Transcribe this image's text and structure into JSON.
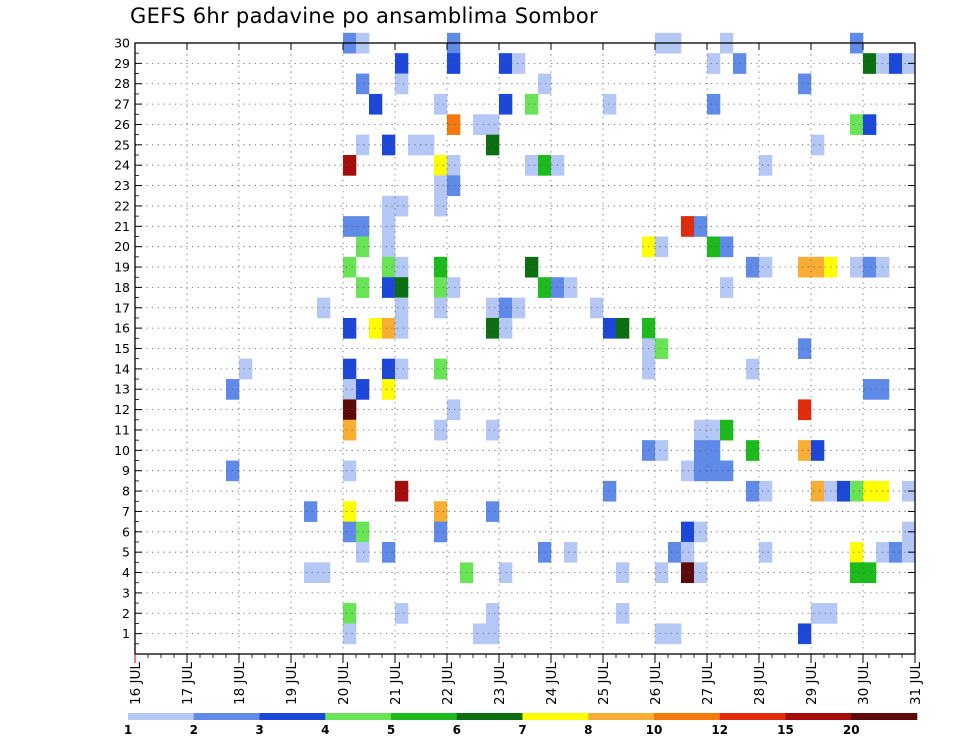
{
  "chart_data": {
    "type": "heatmap",
    "title": "GEFS 6hr padavine po ansamblima Sombor",
    "x_tick_labels": [
      "16 JUL",
      "17 JUL",
      "18 JUL",
      "19 JUL",
      "20 JUL",
      "21 JUL",
      "22 JUL",
      "23 JUL",
      "24 JUL",
      "25 JUL",
      "26 JUL",
      "27 JUL",
      "28 JUL",
      "29 JUL",
      "30 JUL",
      "31 JUL"
    ],
    "x_range_days": [
      16,
      31
    ],
    "y_range": [
      0,
      30
    ],
    "y_tick_labels": [
      "1",
      "2",
      "3",
      "4",
      "5",
      "6",
      "7",
      "8",
      "9",
      "10",
      "11",
      "12",
      "13",
      "14",
      "15",
      "16",
      "17",
      "18",
      "19",
      "20",
      "21",
      "22",
      "23",
      "24",
      "25",
      "26",
      "27",
      "28",
      "29",
      "30"
    ],
    "grid": true,
    "legend": {
      "placement": "bottom",
      "bin_labels": [
        "1",
        "2",
        "3",
        "4",
        "5",
        "6",
        "7",
        "8",
        "10",
        "12",
        "15",
        "20"
      ],
      "colors": [
        "#b4c7f5",
        "#5f8ae8",
        "#1d47d8",
        "#6ae457",
        "#1cba1c",
        "#0b6e10",
        "#ffff00",
        "#f8ad35",
        "#f5780b",
        "#e02c0c",
        "#a50d0d",
        "#5c0a0a"
      ]
    },
    "points": [
      {
        "day": 20.0,
        "m": 30,
        "v": 2
      },
      {
        "day": 20.25,
        "m": 30,
        "v": 1
      },
      {
        "day": 22.0,
        "m": 30,
        "v": 2
      },
      {
        "day": 26.0,
        "m": 30,
        "v": 1
      },
      {
        "day": 26.25,
        "m": 30,
        "v": 1
      },
      {
        "day": 27.25,
        "m": 30,
        "v": 1
      },
      {
        "day": 29.75,
        "m": 30,
        "v": 2
      },
      {
        "day": 21.0,
        "m": 29,
        "v": 3
      },
      {
        "day": 22.0,
        "m": 29,
        "v": 3
      },
      {
        "day": 23.0,
        "m": 29,
        "v": 3
      },
      {
        "day": 23.25,
        "m": 29,
        "v": 1
      },
      {
        "day": 27.0,
        "m": 29,
        "v": 1
      },
      {
        "day": 27.5,
        "m": 29,
        "v": 2
      },
      {
        "day": 30.0,
        "m": 29,
        "v": 6
      },
      {
        "day": 30.25,
        "m": 29,
        "v": 1
      },
      {
        "day": 30.5,
        "m": 29,
        "v": 3
      },
      {
        "day": 30.75,
        "m": 29,
        "v": 1
      },
      {
        "day": 20.25,
        "m": 28,
        "v": 2
      },
      {
        "day": 21.0,
        "m": 28,
        "v": 1
      },
      {
        "day": 23.75,
        "m": 28,
        "v": 1
      },
      {
        "day": 28.75,
        "m": 28,
        "v": 2
      },
      {
        "day": 20.5,
        "m": 27,
        "v": 3
      },
      {
        "day": 21.75,
        "m": 27,
        "v": 1
      },
      {
        "day": 23.0,
        "m": 27,
        "v": 3
      },
      {
        "day": 23.5,
        "m": 27,
        "v": 4
      },
      {
        "day": 25.0,
        "m": 27,
        "v": 1
      },
      {
        "day": 27.0,
        "m": 27,
        "v": 2
      },
      {
        "day": 22.0,
        "m": 26,
        "v": 9
      },
      {
        "day": 22.5,
        "m": 26,
        "v": 1
      },
      {
        "day": 22.75,
        "m": 26,
        "v": 1
      },
      {
        "day": 29.75,
        "m": 26,
        "v": 4
      },
      {
        "day": 30.0,
        "m": 26,
        "v": 3
      },
      {
        "day": 20.25,
        "m": 25,
        "v": 1
      },
      {
        "day": 20.75,
        "m": 25,
        "v": 3
      },
      {
        "day": 21.25,
        "m": 25,
        "v": 1
      },
      {
        "day": 21.5,
        "m": 25,
        "v": 1
      },
      {
        "day": 22.75,
        "m": 25,
        "v": 6
      },
      {
        "day": 29.0,
        "m": 25,
        "v": 1
      },
      {
        "day": 20.0,
        "m": 24,
        "v": 11
      },
      {
        "day": 21.75,
        "m": 24,
        "v": 7
      },
      {
        "day": 22.0,
        "m": 24,
        "v": 1
      },
      {
        "day": 23.5,
        "m": 24,
        "v": 1
      },
      {
        "day": 23.75,
        "m": 24,
        "v": 5
      },
      {
        "day": 24.0,
        "m": 24,
        "v": 1
      },
      {
        "day": 28.0,
        "m": 24,
        "v": 1
      },
      {
        "day": 21.75,
        "m": 23,
        "v": 1
      },
      {
        "day": 22.0,
        "m": 23,
        "v": 2
      },
      {
        "day": 20.75,
        "m": 22,
        "v": 1
      },
      {
        "day": 21.0,
        "m": 22,
        "v": 1
      },
      {
        "day": 21.75,
        "m": 22,
        "v": 1
      },
      {
        "day": 20.0,
        "m": 21,
        "v": 2
      },
      {
        "day": 20.25,
        "m": 21,
        "v": 2
      },
      {
        "day": 20.75,
        "m": 21,
        "v": 1
      },
      {
        "day": 26.5,
        "m": 21,
        "v": 10
      },
      {
        "day": 26.75,
        "m": 21,
        "v": 2
      },
      {
        "day": 20.25,
        "m": 20,
        "v": 4
      },
      {
        "day": 20.75,
        "m": 20,
        "v": 1
      },
      {
        "day": 25.75,
        "m": 20,
        "v": 7
      },
      {
        "day": 26.0,
        "m": 20,
        "v": 1
      },
      {
        "day": 27.0,
        "m": 20,
        "v": 5
      },
      {
        "day": 27.25,
        "m": 20,
        "v": 2
      },
      {
        "day": 20.0,
        "m": 19,
        "v": 4
      },
      {
        "day": 20.75,
        "m": 19,
        "v": 4
      },
      {
        "day": 21.0,
        "m": 19,
        "v": 1
      },
      {
        "day": 21.75,
        "m": 19,
        "v": 5
      },
      {
        "day": 23.5,
        "m": 19,
        "v": 6
      },
      {
        "day": 27.75,
        "m": 19,
        "v": 2
      },
      {
        "day": 28.0,
        "m": 19,
        "v": 1
      },
      {
        "day": 28.75,
        "m": 19,
        "v": 8
      },
      {
        "day": 29.0,
        "m": 19,
        "v": 8
      },
      {
        "day": 29.25,
        "m": 19,
        "v": 7
      },
      {
        "day": 29.75,
        "m": 19,
        "v": 1
      },
      {
        "day": 30.0,
        "m": 19,
        "v": 2
      },
      {
        "day": 30.25,
        "m": 19,
        "v": 1
      },
      {
        "day": 20.25,
        "m": 18,
        "v": 4
      },
      {
        "day": 20.75,
        "m": 18,
        "v": 3
      },
      {
        "day": 21.0,
        "m": 18,
        "v": 6
      },
      {
        "day": 21.75,
        "m": 18,
        "v": 4
      },
      {
        "day": 22.0,
        "m": 18,
        "v": 1
      },
      {
        "day": 23.75,
        "m": 18,
        "v": 5
      },
      {
        "day": 24.0,
        "m": 18,
        "v": 2
      },
      {
        "day": 24.25,
        "m": 18,
        "v": 1
      },
      {
        "day": 27.25,
        "m": 18,
        "v": 1
      },
      {
        "day": 19.5,
        "m": 17,
        "v": 1
      },
      {
        "day": 21.0,
        "m": 17,
        "v": 1
      },
      {
        "day": 21.75,
        "m": 17,
        "v": 1
      },
      {
        "day": 22.75,
        "m": 17,
        "v": 1
      },
      {
        "day": 23.0,
        "m": 17,
        "v": 2
      },
      {
        "day": 23.25,
        "m": 17,
        "v": 1
      },
      {
        "day": 24.75,
        "m": 17,
        "v": 1
      },
      {
        "day": 20.0,
        "m": 16,
        "v": 3
      },
      {
        "day": 20.5,
        "m": 16,
        "v": 7
      },
      {
        "day": 20.75,
        "m": 16,
        "v": 8
      },
      {
        "day": 21.0,
        "m": 16,
        "v": 1
      },
      {
        "day": 22.75,
        "m": 16,
        "v": 6
      },
      {
        "day": 23.0,
        "m": 16,
        "v": 1
      },
      {
        "day": 25.0,
        "m": 16,
        "v": 3
      },
      {
        "day": 25.25,
        "m": 16,
        "v": 6
      },
      {
        "day": 25.75,
        "m": 16,
        "v": 5
      },
      {
        "day": 25.75,
        "m": 15,
        "v": 1
      },
      {
        "day": 26.0,
        "m": 15,
        "v": 4
      },
      {
        "day": 28.75,
        "m": 15,
        "v": 2
      },
      {
        "day": 18.0,
        "m": 14,
        "v": 1
      },
      {
        "day": 20.0,
        "m": 14,
        "v": 3
      },
      {
        "day": 20.75,
        "m": 14,
        "v": 3
      },
      {
        "day": 21.0,
        "m": 14,
        "v": 1
      },
      {
        "day": 21.75,
        "m": 14,
        "v": 4
      },
      {
        "day": 25.75,
        "m": 14,
        "v": 1
      },
      {
        "day": 27.75,
        "m": 14,
        "v": 1
      },
      {
        "day": 17.75,
        "m": 13,
        "v": 2
      },
      {
        "day": 20.0,
        "m": 13,
        "v": 1
      },
      {
        "day": 20.25,
        "m": 13,
        "v": 3
      },
      {
        "day": 20.75,
        "m": 13,
        "v": 7
      },
      {
        "day": 30.0,
        "m": 13,
        "v": 2
      },
      {
        "day": 30.25,
        "m": 13,
        "v": 2
      },
      {
        "day": 20.0,
        "m": 12,
        "v": 12
      },
      {
        "day": 22.0,
        "m": 12,
        "v": 1
      },
      {
        "day": 28.75,
        "m": 12,
        "v": 10
      },
      {
        "day": 20.0,
        "m": 11,
        "v": 8
      },
      {
        "day": 21.75,
        "m": 11,
        "v": 1
      },
      {
        "day": 22.75,
        "m": 11,
        "v": 1
      },
      {
        "day": 26.75,
        "m": 11,
        "v": 1
      },
      {
        "day": 27.0,
        "m": 11,
        "v": 1
      },
      {
        "day": 27.25,
        "m": 11,
        "v": 5
      },
      {
        "day": 25.75,
        "m": 10,
        "v": 2
      },
      {
        "day": 26.0,
        "m": 10,
        "v": 1
      },
      {
        "day": 26.75,
        "m": 10,
        "v": 2
      },
      {
        "day": 27.0,
        "m": 10,
        "v": 2
      },
      {
        "day": 27.75,
        "m": 10,
        "v": 5
      },
      {
        "day": 28.75,
        "m": 10,
        "v": 8
      },
      {
        "day": 29.0,
        "m": 10,
        "v": 3
      },
      {
        "day": 17.75,
        "m": 9,
        "v": 2
      },
      {
        "day": 20.0,
        "m": 9,
        "v": 1
      },
      {
        "day": 26.5,
        "m": 9,
        "v": 1
      },
      {
        "day": 26.75,
        "m": 9,
        "v": 2
      },
      {
        "day": 27.0,
        "m": 9,
        "v": 2
      },
      {
        "day": 27.25,
        "m": 9,
        "v": 2
      },
      {
        "day": 21.0,
        "m": 8,
        "v": 11
      },
      {
        "day": 25.0,
        "m": 8,
        "v": 2
      },
      {
        "day": 27.75,
        "m": 8,
        "v": 2
      },
      {
        "day": 28.0,
        "m": 8,
        "v": 1
      },
      {
        "day": 29.0,
        "m": 8,
        "v": 8
      },
      {
        "day": 29.25,
        "m": 8,
        "v": 1
      },
      {
        "day": 29.5,
        "m": 8,
        "v": 3
      },
      {
        "day": 29.75,
        "m": 8,
        "v": 4
      },
      {
        "day": 30.0,
        "m": 8,
        "v": 7
      },
      {
        "day": 30.25,
        "m": 8,
        "v": 7
      },
      {
        "day": 30.75,
        "m": 8,
        "v": 1
      },
      {
        "day": 19.25,
        "m": 7,
        "v": 2
      },
      {
        "day": 20.0,
        "m": 7,
        "v": 7
      },
      {
        "day": 21.75,
        "m": 7,
        "v": 8
      },
      {
        "day": 22.75,
        "m": 7,
        "v": 2
      },
      {
        "day": 20.0,
        "m": 6,
        "v": 2
      },
      {
        "day": 20.25,
        "m": 6,
        "v": 4
      },
      {
        "day": 21.75,
        "m": 6,
        "v": 2
      },
      {
        "day": 26.5,
        "m": 6,
        "v": 3
      },
      {
        "day": 26.75,
        "m": 6,
        "v": 1
      },
      {
        "day": 30.75,
        "m": 6,
        "v": 1
      },
      {
        "day": 20.25,
        "m": 5,
        "v": 1
      },
      {
        "day": 20.75,
        "m": 5,
        "v": 2
      },
      {
        "day": 23.75,
        "m": 5,
        "v": 2
      },
      {
        "day": 24.25,
        "m": 5,
        "v": 1
      },
      {
        "day": 26.25,
        "m": 5,
        "v": 2
      },
      {
        "day": 26.5,
        "m": 5,
        "v": 1
      },
      {
        "day": 28.0,
        "m": 5,
        "v": 1
      },
      {
        "day": 29.75,
        "m": 5,
        "v": 7
      },
      {
        "day": 30.25,
        "m": 5,
        "v": 1
      },
      {
        "day": 30.5,
        "m": 5,
        "v": 2
      },
      {
        "day": 30.75,
        "m": 5,
        "v": 1
      },
      {
        "day": 19.25,
        "m": 4,
        "v": 1
      },
      {
        "day": 19.5,
        "m": 4,
        "v": 1
      },
      {
        "day": 22.25,
        "m": 4,
        "v": 4
      },
      {
        "day": 23.0,
        "m": 4,
        "v": 1
      },
      {
        "day": 25.25,
        "m": 4,
        "v": 1
      },
      {
        "day": 26.0,
        "m": 4,
        "v": 1
      },
      {
        "day": 26.5,
        "m": 4,
        "v": 12
      },
      {
        "day": 26.75,
        "m": 4,
        "v": 1
      },
      {
        "day": 29.75,
        "m": 4,
        "v": 5
      },
      {
        "day": 30.0,
        "m": 4,
        "v": 5
      },
      {
        "day": 20.0,
        "m": 2,
        "v": 4
      },
      {
        "day": 21.0,
        "m": 2,
        "v": 1
      },
      {
        "day": 22.75,
        "m": 2,
        "v": 1
      },
      {
        "day": 25.25,
        "m": 2,
        "v": 1
      },
      {
        "day": 29.0,
        "m": 2,
        "v": 1
      },
      {
        "day": 29.25,
        "m": 2,
        "v": 1
      },
      {
        "day": 20.0,
        "m": 1,
        "v": 1
      },
      {
        "day": 22.5,
        "m": 1,
        "v": 1
      },
      {
        "day": 22.75,
        "m": 1,
        "v": 1
      },
      {
        "day": 26.0,
        "m": 1,
        "v": 1
      },
      {
        "day": 26.25,
        "m": 1,
        "v": 1
      },
      {
        "day": 28.75,
        "m": 1,
        "v": 3
      }
    ]
  }
}
